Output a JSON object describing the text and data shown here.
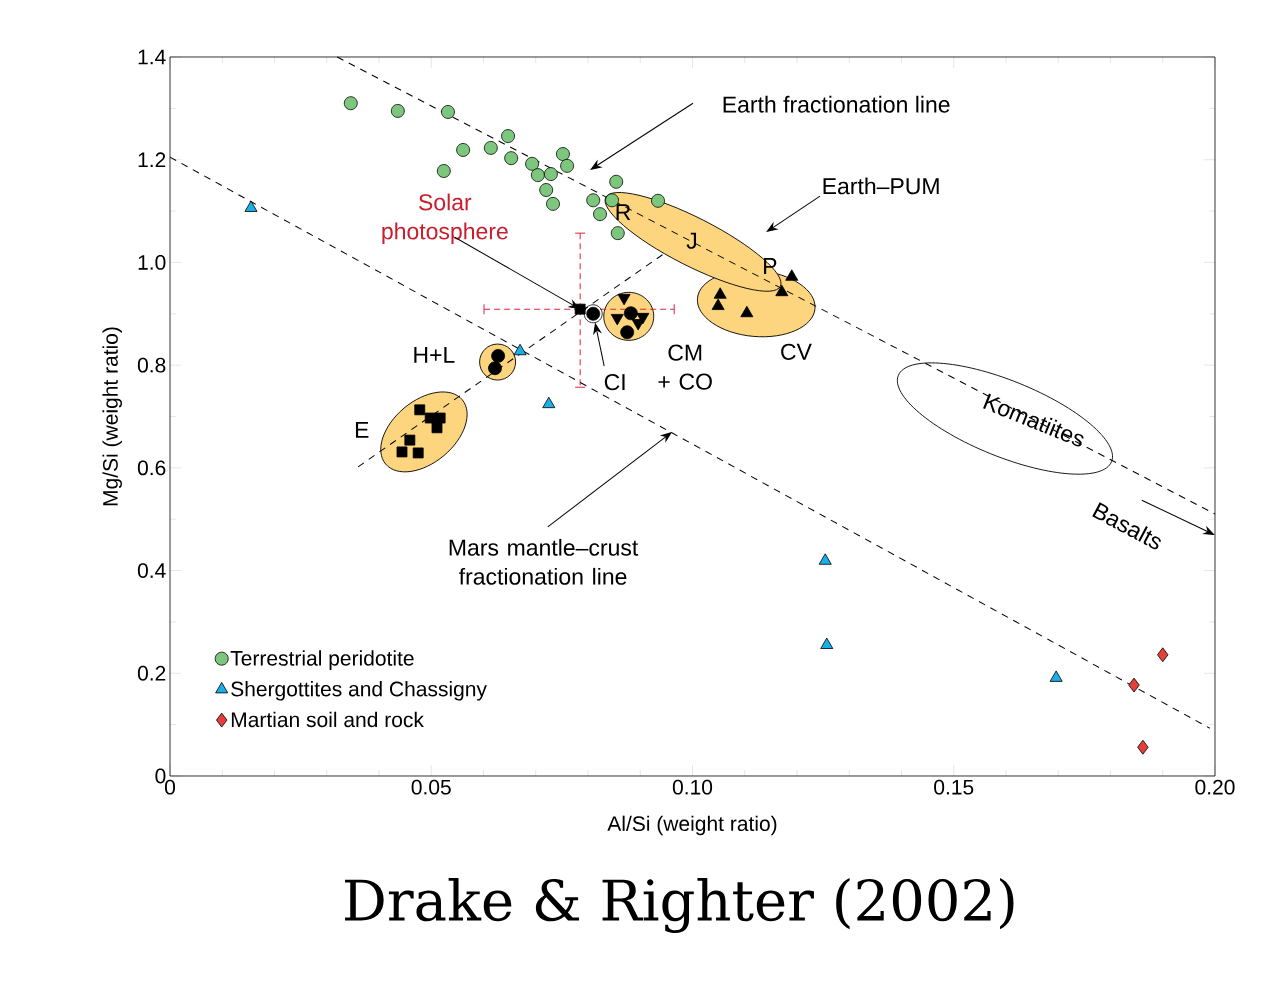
{
  "chart_data": {
    "type": "scatter",
    "xlabel": "Al/Si (weight ratio)",
    "ylabel": "Mg/Si (weight ratio)",
    "xlim": [
      0,
      0.2
    ],
    "ylim": [
      0,
      1.4
    ],
    "xticks": [
      0,
      0.05,
      {
        "value": 0.1,
        "label": "0.10"
      },
      0.15,
      {
        "value": 0.2,
        "label": "0.20"
      }
    ],
    "yticks": [
      0,
      0.2,
      0.4,
      0.6,
      0.8,
      {
        "value": 1.0,
        "label": "1.0"
      },
      1.2,
      1.4
    ],
    "legend": "bottom left",
    "series": [
      {
        "name": "Terrestrial peridotite",
        "marker": "circle",
        "color": "#7dc67d",
        "x": [
          0.0346,
          0.0436,
          0.0532,
          0.0647,
          0.0561,
          0.0614,
          0.0653,
          0.0524,
          0.0693,
          0.0704,
          0.0729,
          0.0752,
          0.076,
          0.072,
          0.0733,
          0.081,
          0.0823,
          0.0854,
          0.0846,
          0.0857,
          0.0934
        ],
        "values": [
          1.31,
          1.295,
          1.293,
          1.246,
          1.219,
          1.223,
          1.203,
          1.178,
          1.192,
          1.17,
          1.172,
          1.211,
          1.188,
          1.141,
          1.114,
          1.121,
          1.094,
          1.157,
          1.121,
          1.057,
          1.12
        ]
      },
      {
        "name": "Shergottites and Chassigny",
        "marker": "triangle",
        "color": "#1aafe6",
        "x": [
          0.0155,
          0.067,
          0.0725,
          0.1254,
          0.1257,
          0.1696
        ],
        "values": [
          1.106,
          0.827,
          0.724,
          0.419,
          0.255,
          0.191
        ]
      },
      {
        "name": "Martian soil and rock",
        "marker": "diamond",
        "color": "#e2403a",
        "x": [
          0.19,
          0.1845,
          0.1862
        ],
        "values": [
          0.236,
          0.177,
          0.056
        ]
      },
      {
        "marker": "square",
        "color": "#000000",
        "x": [
          0.0478,
          0.0498,
          0.0517,
          0.0511,
          0.0459,
          0.0444,
          0.0475
        ],
        "values": [
          0.713,
          0.697,
          0.697,
          0.678,
          0.654,
          0.631,
          0.629
        ]
      },
      {
        "marker": "circle",
        "color": "#000000",
        "x": [
          0.0628,
          0.0622,
          0.0882,
          0.0875
        ],
        "values": [
          0.818,
          0.794,
          0.901,
          0.864
        ]
      },
      {
        "marker": "triangle down",
        "color": "#000000",
        "x": [
          0.0869,
          0.0856,
          0.0905,
          0.0896
        ],
        "values": [
          0.931,
          0.892,
          0.894,
          0.882
        ]
      },
      {
        "marker": "triangle",
        "color": "#000000",
        "x": [
          0.1053,
          0.1049,
          0.1104,
          0.1171,
          0.119
        ],
        "values": [
          0.937,
          0.915,
          0.901,
          0.942,
          0.972
        ]
      },
      {
        "marker": "square",
        "color": "#000000",
        "x": [
          0.0785
        ],
        "values": [
          0.909
        ],
        "xerrors": [
          [
            0.0601,
            0.0965
          ]
        ],
        "errors": [
          [
            0.757,
            1.057
          ]
        ]
      },
      {
        "marker": "circle",
        "color": "#000000",
        "x": [
          0.081
        ],
        "values": [
          0.9
        ]
      },
      {
        "type": "line",
        "line_style": "dashed",
        "marker": "none",
        "color": "#000000",
        "x": [
          0.032,
          0.2
        ],
        "values": [
          1.4,
          0.51
        ]
      },
      {
        "type": "line",
        "line_style": "dashed",
        "marker": "none",
        "color": "#000000",
        "x": [
          0,
          0.199
        ],
        "values": [
          1.205,
          0.093
        ]
      },
      {
        "type": "line",
        "line_style": "dashed",
        "marker": "none",
        "color": "#000000",
        "x": [
          0.036,
          0.0944
        ],
        "values": [
          0.602,
          1.016
        ]
      }
    ],
    "annotations": [
      "Earth fractionation line",
      "Earth–PUM",
      {
        "text": "Solar photosphere",
        "x": 0.0785,
        "y": 0.909
      },
      "R",
      "J",
      "P",
      "H+L",
      "E",
      {
        "text": "CI",
        "x": 0.081,
        "y": 0.9
      },
      "CM + CO",
      "CV",
      "Komatiites",
      "Basalts",
      {
        "text": "Mars mantle–crust fractionation line",
        "x": 0.0961,
        "y": 0.67
      },
      "Drake & Righter (2002)"
    ]
  }
}
